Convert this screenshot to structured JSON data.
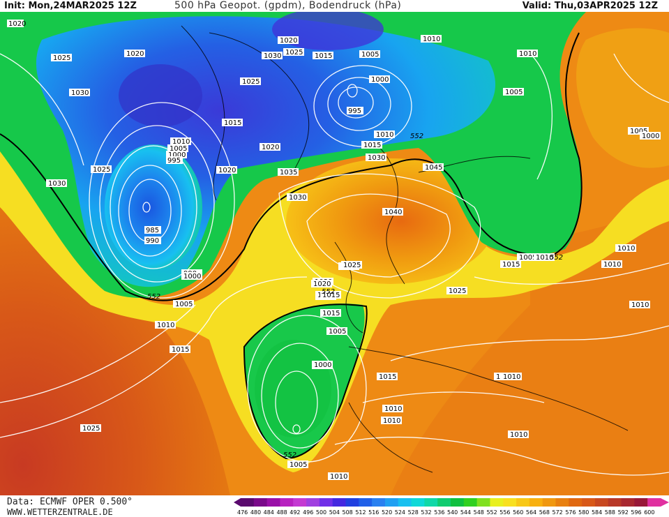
{
  "header": {
    "init": "Init: Mon,24MAR2025 12Z",
    "title": "500 hPa Geopot. (gpdm), Bodendruck (hPa)",
    "valid": "Valid: Thu,03APR2025 12Z"
  },
  "footer": {
    "data_source": "Data: ECMWF OPER 0.500°",
    "website": "WWW.WETTERZENTRALE.DE"
  },
  "legend": {
    "levels": [
      "476",
      "480",
      "484",
      "488",
      "492",
      "496",
      "500",
      "504",
      "508",
      "512",
      "516",
      "520",
      "524",
      "528",
      "532",
      "536",
      "540",
      "544",
      "548",
      "552",
      "556",
      "560",
      "564",
      "568",
      "572",
      "576",
      "580",
      "584",
      "588",
      "592",
      "596",
      "600"
    ],
    "colors": [
      "#5a0a6e",
      "#7a0a8a",
      "#9a10a8",
      "#b822c0",
      "#c43ad2",
      "#a040e0",
      "#7030e8",
      "#4428e0",
      "#2040e0",
      "#2060e8",
      "#2a80f0",
      "#20a0f2",
      "#18c0f0",
      "#10d8d8",
      "#10d8a8",
      "#10cc70",
      "#10c040",
      "#30d020",
      "#80e020",
      "#e8f020",
      "#f8e020",
      "#f8c818",
      "#f8b010",
      "#f09810",
      "#e88010",
      "#e06810",
      "#d85818",
      "#c84820",
      "#b83828",
      "#a82830",
      "#981838",
      "#e030a0"
    ]
  },
  "labels": {
    "pressure": [
      "1020",
      "1025",
      "1030",
      "1020",
      "1025",
      "1030",
      "1020",
      "1025",
      "1015",
      "1005",
      "1000",
      "995",
      "1010",
      "1010",
      "1005",
      "1015",
      "1030",
      "1025",
      "1030",
      "1035",
      "1040",
      "1045",
      "1010",
      "1005",
      "1000",
      "995",
      "990",
      "985",
      "990",
      "1020",
      "1015",
      "1010",
      "1005",
      "1000",
      "1020",
      "1025",
      "1030",
      "1025",
      "1030",
      "1025",
      "1020",
      "1015",
      "1010",
      "1005",
      "1000",
      "1010",
      "1015",
      "1020",
      "1010",
      "1015",
      "1005",
      "1000",
      "1005",
      "1010",
      "1015",
      "1010",
      "1010",
      "1005",
      "1000",
      "1010",
      "1010",
      "1015",
      "1020",
      "1010",
      "1025",
      "1015",
      "1010",
      "1005",
      "1010",
      "1015"
    ],
    "height": [
      "552",
      "552",
      "552",
      "552",
      "552"
    ]
  }
}
